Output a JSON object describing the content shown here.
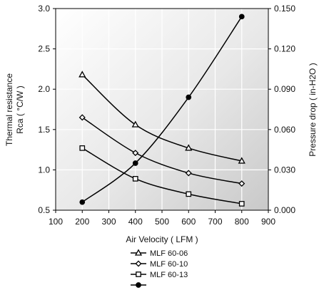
{
  "chart_data": {
    "type": "line",
    "xlabel": "Air Velocity ( LFM )",
    "ylabel_left": [
      "Thermal resistance",
      "Rca ( °C/W )"
    ],
    "ylabel_right": "Pressure drop ( in-H2O )",
    "xlim": [
      100,
      900
    ],
    "ylim_left": [
      0.5,
      3.0
    ],
    "ylim_right": [
      0.0,
      0.15
    ],
    "x_ticks": [
      "100",
      "200",
      "300",
      "400",
      "500",
      "600",
      "700",
      "800",
      "900"
    ],
    "y_left_ticks": [
      "0.5",
      "1.0",
      "1.5",
      "2.0",
      "2.5",
      "3.0"
    ],
    "y_right_ticks": [
      "0.000",
      "0.030",
      "0.060",
      "0.090",
      "0.120",
      "0.150"
    ],
    "grid": true,
    "legend_position": "bottom",
    "series": [
      {
        "name": "MLF 60-06",
        "axis": "left",
        "marker": "triangle",
        "x": [
          200,
          400,
          600,
          800
        ],
        "y": [
          2.18,
          1.56,
          1.27,
          1.11
        ]
      },
      {
        "name": "MLF 60-10",
        "axis": "left",
        "marker": "diamond",
        "x": [
          200,
          400,
          600,
          800
        ],
        "y": [
          1.65,
          1.21,
          0.96,
          0.83
        ]
      },
      {
        "name": "MLF 60-13",
        "axis": "left",
        "marker": "square",
        "x": [
          200,
          400,
          600,
          800
        ],
        "y": [
          1.27,
          0.89,
          0.7,
          0.58
        ]
      },
      {
        "name": "",
        "axis": "right",
        "marker": "circle",
        "x": [
          200,
          400,
          600,
          800
        ],
        "y": [
          0.006,
          0.035,
          0.084,
          0.144
        ]
      }
    ]
  }
}
